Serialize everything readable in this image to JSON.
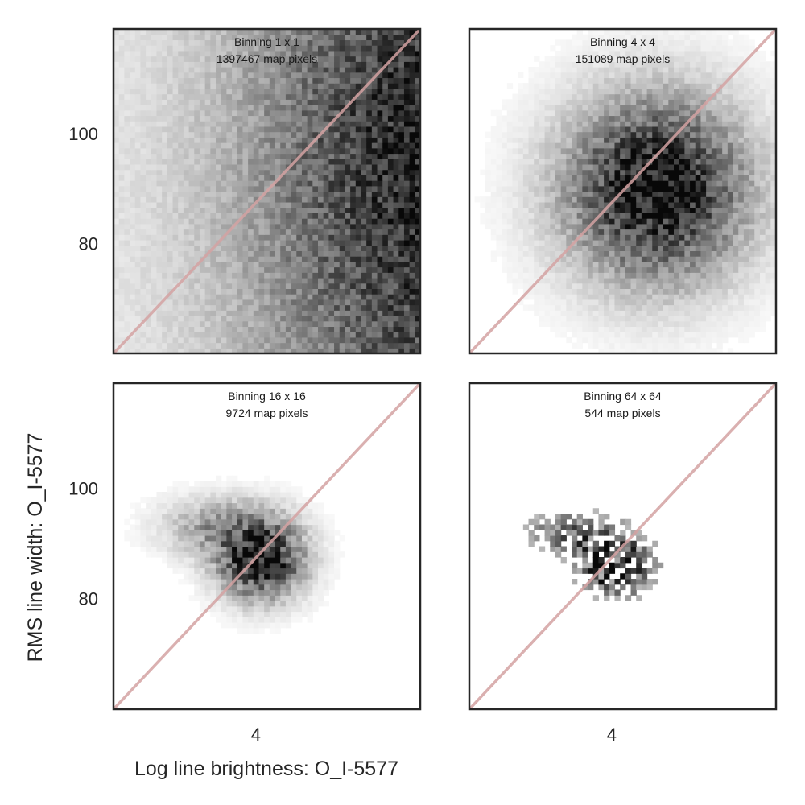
{
  "figure": {
    "xlabel": "Log line brightness: O_I-5577",
    "ylabel": "RMS line width: O_I-5577"
  },
  "chart_data": [
    {
      "type": "heatmap",
      "title_lines": [
        "Binning 1 x 1",
        "1397467 map pixels"
      ],
      "xlim": [
        2.7,
        5.5
      ],
      "ylim": [
        60,
        119
      ],
      "x_ticks": [
        4
      ],
      "y_ticks": [
        80,
        100
      ],
      "show_x_ticks": false,
      "show_y_ticks": true,
      "density": {
        "type": "halfplane",
        "x_edge": 4.4,
        "x_width": 0.55,
        "y_center": 95,
        "y_sd": 26,
        "floor": 0.04,
        "noise": 0.3
      },
      "reference_line": {
        "from": [
          2.7,
          60
        ],
        "to": [
          5.5,
          119
        ],
        "color": "#d4a2a2"
      },
      "cmap": "Greys"
    },
    {
      "type": "heatmap",
      "title_lines": [
        "Binning 4 x 4",
        "151089 map pixels"
      ],
      "xlim": [
        2.7,
        5.5
      ],
      "ylim": [
        60,
        119
      ],
      "x_ticks": [
        4
      ],
      "y_ticks": [
        80,
        100
      ],
      "show_x_ticks": false,
      "show_y_ticks": false,
      "density": {
        "type": "blobs",
        "blobs": [
          {
            "x": 4.4,
            "y": 90,
            "sx": 0.55,
            "sy": 11,
            "w": 1.0
          }
        ],
        "noise": 0.35
      },
      "reference_line": {
        "from": [
          2.7,
          60
        ],
        "to": [
          5.5,
          119
        ],
        "color": "#d4a2a2"
      },
      "cmap": "Greys"
    },
    {
      "type": "heatmap",
      "title_lines": [
        "Binning 16 x 16",
        "9724 map pixels"
      ],
      "xlim": [
        2.7,
        5.5
      ],
      "ylim": [
        60,
        119
      ],
      "x_ticks": [
        4
      ],
      "y_ticks": [
        80,
        100
      ],
      "show_x_ticks": true,
      "show_y_ticks": true,
      "density": {
        "type": "blobs",
        "blobs": [
          {
            "x": 4.05,
            "y": 87,
            "sx": 0.25,
            "sy": 4.5,
            "w": 1.0
          },
          {
            "x": 3.7,
            "y": 93,
            "sx": 0.35,
            "sy": 3.5,
            "w": 0.35
          }
        ],
        "noise": 0.45
      },
      "reference_line": {
        "from": [
          2.7,
          60
        ],
        "to": [
          5.5,
          119
        ],
        "color": "#d4a2a2"
      },
      "cmap": "Greys"
    },
    {
      "type": "heatmap",
      "title_lines": [
        "Binning 64 x 64",
        "544 map pixels"
      ],
      "xlim": [
        2.7,
        5.5
      ],
      "ylim": [
        60,
        119
      ],
      "x_ticks": [
        4
      ],
      "y_ticks": [
        80,
        100
      ],
      "show_x_ticks": true,
      "show_y_ticks": false,
      "density": {
        "type": "blobs",
        "blobs": [
          {
            "x": 4.05,
            "y": 86,
            "sx": 0.22,
            "sy": 3.5,
            "w": 1.0
          },
          {
            "x": 3.65,
            "y": 92,
            "sx": 0.3,
            "sy": 3,
            "w": 0.45
          }
        ],
        "noise": 0.8,
        "cutoff": 0.22
      },
      "reference_line": {
        "from": [
          2.7,
          60
        ],
        "to": [
          5.5,
          119
        ],
        "color": "#d4a2a2"
      },
      "cmap": "Greys"
    }
  ]
}
